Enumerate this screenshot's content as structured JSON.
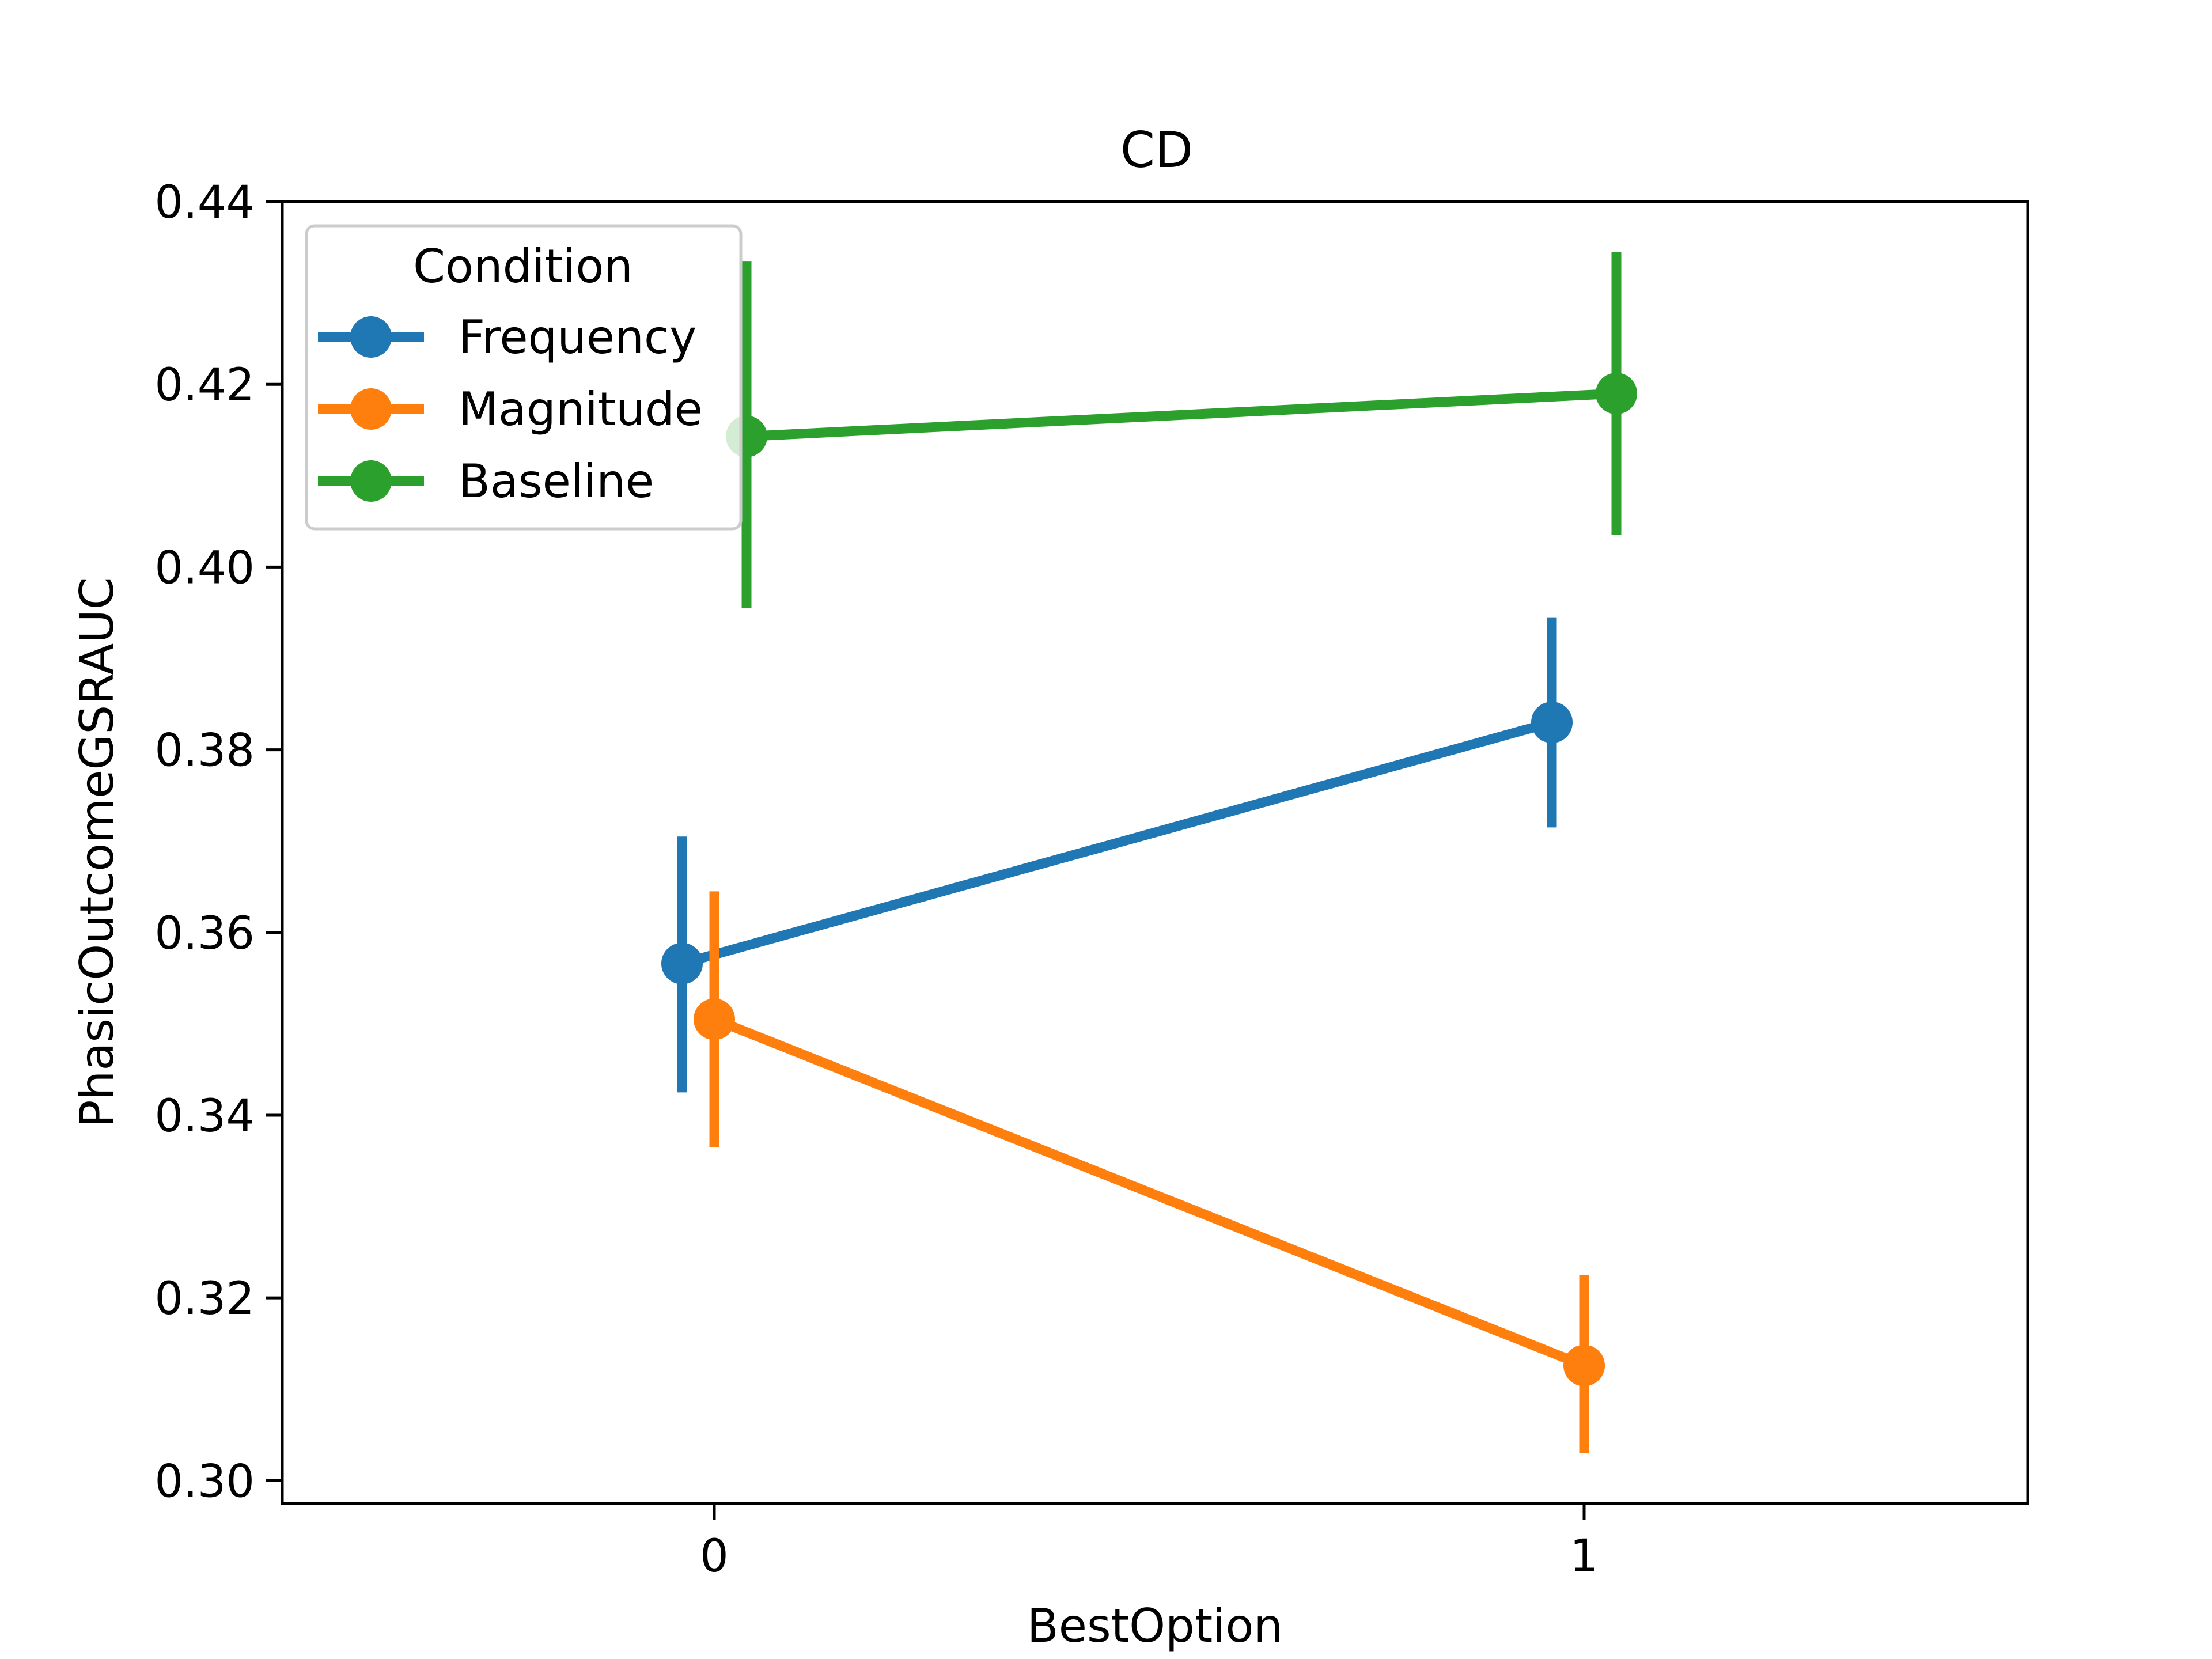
{
  "chart_data": {
    "type": "line",
    "title": "CD",
    "xlabel": "BestOption",
    "ylabel": "PhasicOutcomeGSRAUC",
    "categories": [
      "0",
      "1"
    ],
    "ylim": [
      0.2975,
      0.44
    ],
    "yticks": [
      0.3,
      0.32,
      0.34,
      0.36,
      0.38,
      0.4,
      0.42,
      0.44
    ],
    "ytick_labels": [
      "0.30",
      "0.32",
      "0.34",
      "0.36",
      "0.38",
      "0.40",
      "0.42",
      "0.44"
    ],
    "grid": false,
    "legend": {
      "title": "Condition",
      "position": "top-left"
    },
    "series": [
      {
        "name": "Frequency",
        "color": "#1f77b4",
        "values": [
          0.3566,
          0.383
        ],
        "ci_low": [
          0.3425,
          0.3715
        ],
        "ci_high": [
          0.3705,
          0.3945
        ]
      },
      {
        "name": "Magnitude",
        "color": "#ff7f0e",
        "values": [
          0.3505,
          0.3126
        ],
        "ci_low": [
          0.3365,
          0.303
        ],
        "ci_high": [
          0.3645,
          0.3225
        ]
      },
      {
        "name": "Baseline",
        "color": "#2ca02c",
        "values": [
          0.4143,
          0.419
        ],
        "ci_low": [
          0.3955,
          0.4035
        ],
        "ci_high": [
          0.4335,
          0.4345
        ]
      }
    ]
  }
}
